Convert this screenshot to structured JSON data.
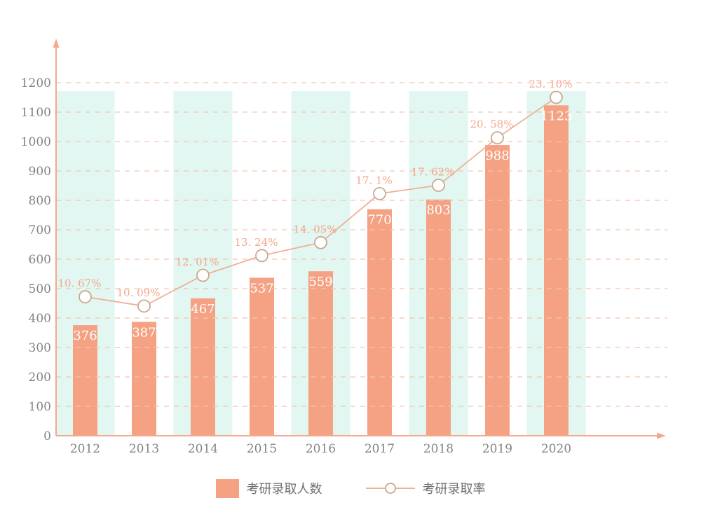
{
  "chart_data": {
    "type": "bar+line",
    "categories": [
      "2012",
      "2013",
      "2014",
      "2015",
      "2016",
      "2017",
      "2018",
      "2019",
      "2020"
    ],
    "series": [
      {
        "name": "考研录取人数",
        "type": "bar",
        "values": [
          376,
          387,
          467,
          537,
          559,
          770,
          803,
          988,
          1123
        ]
      },
      {
        "name": "考研录取率",
        "type": "line",
        "unit": "%",
        "values": [
          10.67,
          10.09,
          12.01,
          13.24,
          14.05,
          17.1,
          17.62,
          20.58,
          23.1
        ],
        "point_labels": [
          "10. 67%",
          "10. 09%",
          "12. 01%",
          "13. 24%",
          "14. 05%",
          "17. 1%",
          "17. 62%",
          "20. 58%",
          "23. 10%"
        ]
      }
    ],
    "y_axis": {
      "min": 0,
      "max": 1200,
      "tick_step": 100,
      "ticks": [
        0,
        100,
        200,
        300,
        400,
        500,
        600,
        700,
        800,
        900,
        1000,
        1100,
        1200
      ]
    },
    "x_axis": {
      "ticks": [
        "2012",
        "2013",
        "2014",
        "2015",
        "2016",
        "2017",
        "2018",
        "2019",
        "2020"
      ]
    },
    "grid": {
      "horizontal": true,
      "style": "dashed"
    },
    "legend_position": "bottom",
    "background_bands_behind": [
      "2012",
      "2014",
      "2016",
      "2018",
      "2020"
    ],
    "title": ""
  },
  "colors": {
    "bar": "#F5A284",
    "band": "#E2F7F1",
    "line": "#F1B096",
    "marker_fill": "#FFFFFF",
    "marker_stroke": "#C9A98D",
    "percent_label": "#F4A78C",
    "gridline": "#F2C6B0",
    "axis": "#F5A88B",
    "tick_label": "#848484",
    "bar_value_label": "#FFFFFF",
    "legend_text": "#6E6E6E"
  }
}
